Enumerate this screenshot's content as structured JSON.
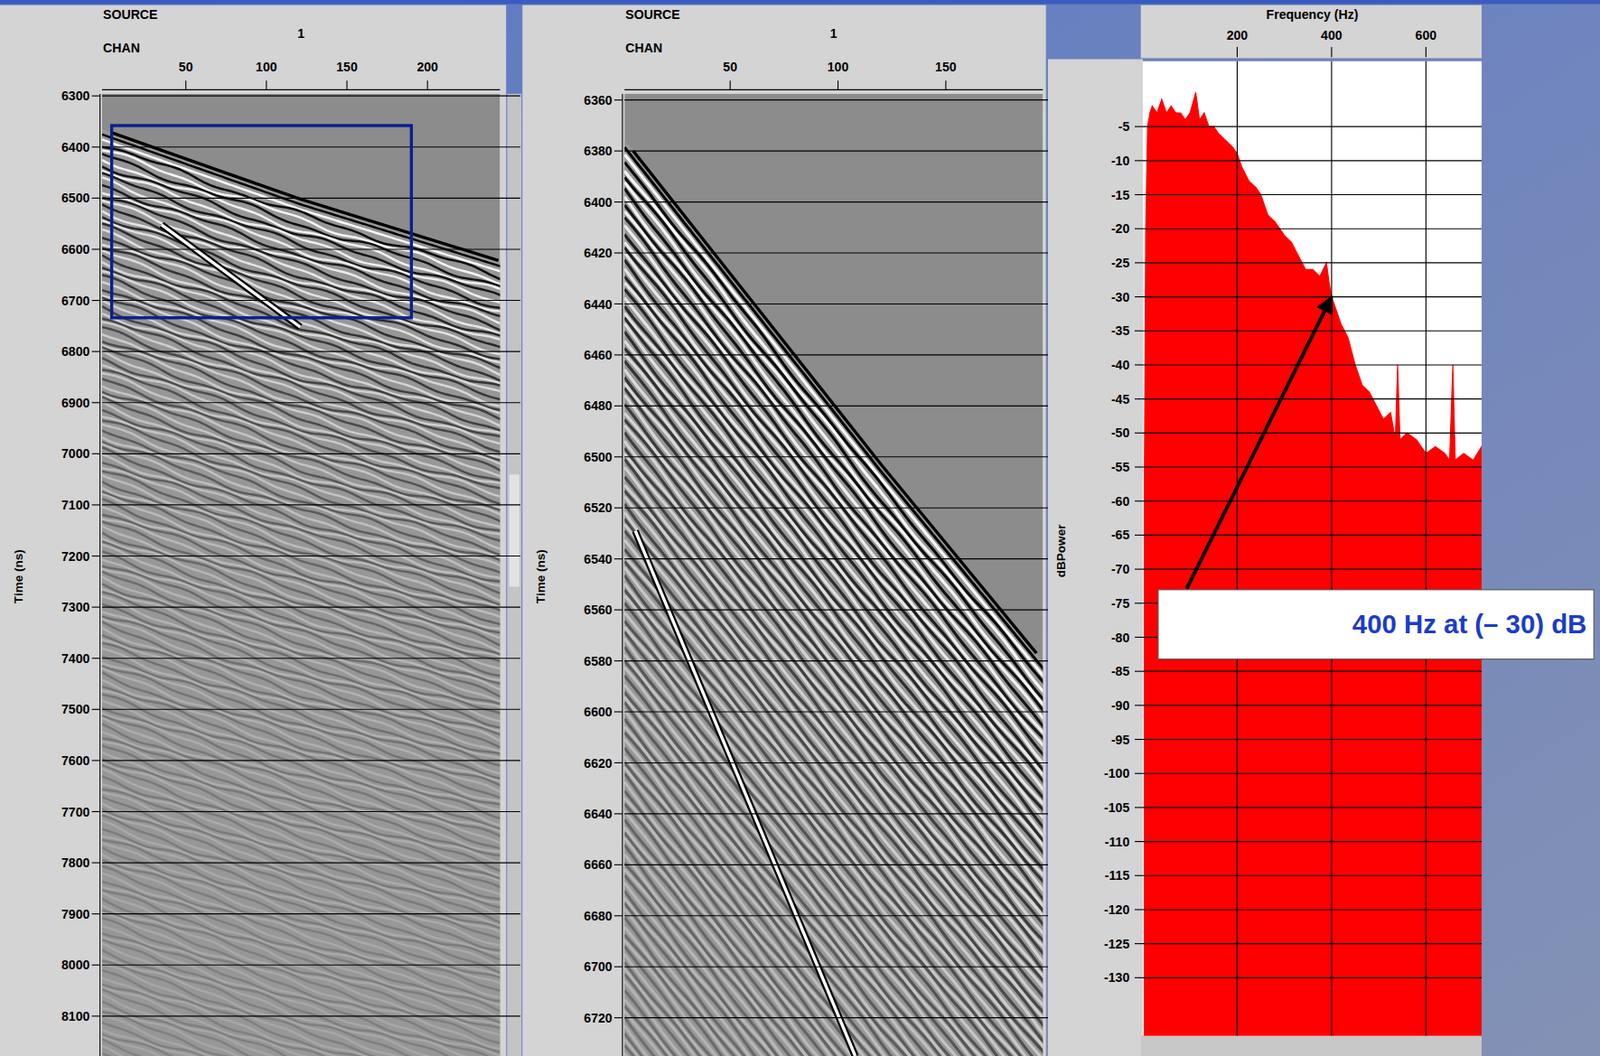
{
  "chart_data": [
    {
      "type": "section",
      "header": "SOURCE",
      "source": "1",
      "x_label": "CHAN",
      "y_label": "Time (ns)",
      "xlim": [
        -2,
        245
      ],
      "xticks": [
        50,
        100,
        150,
        200
      ],
      "ylim": [
        6296,
        8178
      ],
      "yticks": [
        6300,
        6400,
        6500,
        6600,
        6700,
        6800,
        6900,
        7000,
        7100,
        7200,
        7300,
        7400,
        7500,
        7600,
        7700,
        7800,
        7900,
        8000,
        8100
      ],
      "grid": true,
      "first_break": {
        "x": [
          4,
          121,
          244
        ],
        "y": [
          6372,
          6502,
          6622
        ]
      },
      "events": [
        {
          "x": [
            35,
            121
          ],
          "y": [
            6552,
            6752
          ]
        }
      ],
      "box": {
        "x": [
          4,
          190
        ],
        "y": [
          6358,
          6734
        ]
      }
    },
    {
      "type": "section",
      "header": "SOURCE",
      "source": "1",
      "x_label": "CHAN",
      "y_label": "Time (ns)",
      "xlim": [
        1,
        195
      ],
      "xticks": [
        50,
        100,
        150
      ],
      "ylim": [
        6357.6,
        6735
      ],
      "yticks": [
        6360,
        6380,
        6400,
        6420,
        6440,
        6460,
        6480,
        6500,
        6520,
        6540,
        6560,
        6580,
        6600,
        6620,
        6640,
        6660,
        6680,
        6700,
        6720
      ],
      "grid": true,
      "first_break": {
        "x": [
          5,
          120,
          192
        ],
        "y": [
          6380,
          6503,
          6577
        ]
      },
      "events": [
        {
          "x": [
            6,
            108
          ],
          "y": [
            6529,
            6735
          ]
        }
      ]
    },
    {
      "type": "area",
      "title": "Frequency (Hz)",
      "y_label": "dBPower",
      "color": "#ff0000",
      "xlim": [
        0,
        718
      ],
      "xticks": [
        200,
        400,
        600
      ],
      "ylim": [
        -138.5,
        4.6
      ],
      "yticks": [
        -5,
        -10,
        -15,
        -20,
        -25,
        -30,
        -35,
        -40,
        -45,
        -50,
        -55,
        -60,
        -65,
        -70,
        -75,
        -80,
        -85,
        -90,
        -95,
        -100,
        -105,
        -110,
        -115,
        -120,
        -125,
        -130
      ],
      "grid": true,
      "x": [
        3,
        6,
        10,
        15,
        20,
        30,
        40,
        50,
        60,
        70,
        80,
        90,
        100,
        112,
        120,
        130,
        140,
        150,
        160,
        175,
        190,
        200,
        210,
        225,
        240,
        250,
        265,
        280,
        300,
        315,
        330,
        345,
        360,
        375,
        389,
        395,
        400,
        410,
        420,
        435,
        450,
        465,
        480,
        495,
        510,
        525,
        535,
        540,
        545,
        560,
        580,
        600,
        620,
        640,
        650,
        657,
        662,
        680,
        700,
        718
      ],
      "values": [
        -60,
        -20,
        -5,
        -3,
        -2,
        -3,
        -1,
        -3,
        -2,
        -3,
        -3,
        -4,
        -3,
        0,
        -4,
        -3,
        -5,
        -5,
        -6,
        -7,
        -8,
        -9,
        -11,
        -13,
        -14,
        -15,
        -18,
        -19,
        -21,
        -22,
        -24,
        -26,
        -26,
        -27,
        -25,
        -28,
        -30,
        -32,
        -34,
        -36,
        -40,
        -43,
        -44,
        -46,
        -48,
        -47,
        -51,
        -40,
        -51,
        -50,
        -51,
        -53,
        -52,
        -53,
        -54,
        -40,
        -54,
        -53,
        -54,
        -52
      ],
      "annotation": {
        "text": "400 Hz at (– 30) dB",
        "x": 400,
        "y": -30
      }
    }
  ]
}
